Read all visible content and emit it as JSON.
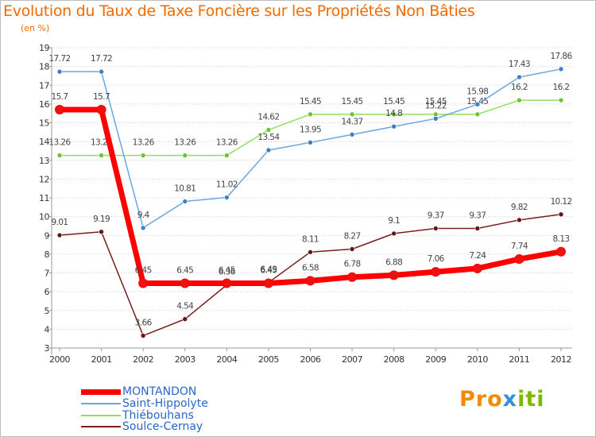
{
  "title": "Evolution du Taux de Taxe Foncière sur les Propriétés Non Bâties",
  "subtitle": "(en %)",
  "logo": {
    "p1": "Pro",
    "p2": "x",
    "p3": "iti"
  },
  "colors": {
    "title": "#f06a00",
    "legend_text": "#2a66c8",
    "grid": "#d0d0d0",
    "axis": "#999999",
    "tick_text": "#333333",
    "value_text": "#444444"
  },
  "chart_data": {
    "type": "line",
    "title": "Evolution du Taux de Taxe Foncière sur les Propriétés Non Bâties",
    "ylabel": "(en %)",
    "xlabel": "",
    "ylim": [
      3,
      19
    ],
    "yticks": [
      3,
      4,
      5,
      6,
      7,
      8,
      9,
      10,
      11,
      12,
      13,
      14,
      15,
      16,
      17,
      18,
      19
    ],
    "categories": [
      "2000",
      "2001",
      "2002",
      "2003",
      "2004",
      "2005",
      "2006",
      "2007",
      "2008",
      "2009",
      "2010",
      "2011",
      "2012"
    ],
    "grid": "horizontal",
    "legend": "bottom-left",
    "series": [
      {
        "name": "Soulce-Cernay",
        "color": "#7a1e1e",
        "marker": "#6a1414",
        "width": 1.5,
        "values": [
          9.01,
          9.19,
          3.66,
          4.54,
          6.36,
          6.49,
          8.11,
          8.27,
          9.1,
          9.37,
          9.37,
          9.82,
          10.12
        ],
        "labels": [
          "9.01",
          "9.19",
          "3.66",
          "4.54",
          "6.36",
          "6.49",
          "8.11",
          "8.27",
          "9.1",
          "9.37",
          "9.37",
          "9.82",
          "10.12"
        ]
      },
      {
        "name": "Thiébouhans",
        "color": "#8fe05a",
        "marker": "#6cc433",
        "width": 1.5,
        "values": [
          13.26,
          13.26,
          13.26,
          13.26,
          13.26,
          14.62,
          15.45,
          15.45,
          15.45,
          15.45,
          15.45,
          16.2,
          16.2
        ],
        "labels": [
          "13.26",
          "13.26",
          "13.26",
          "13.26",
          "13.26",
          "14.62",
          "15.45",
          "15.45",
          "15.45",
          "15.45",
          "15.45",
          "16.2",
          "16.2"
        ]
      },
      {
        "name": "Saint-Hippolyte",
        "color": "#6aa6e0",
        "marker": "#3f7fc4",
        "width": 1.5,
        "values": [
          17.72,
          17.72,
          9.4,
          10.81,
          11.02,
          13.54,
          13.95,
          14.37,
          14.8,
          15.22,
          15.98,
          17.43,
          17.86
        ],
        "labels": [
          "17.72",
          "17.72",
          "9.4",
          "10.81",
          "11.02",
          "13.54",
          "13.95",
          "14.37",
          "14.8",
          "15.22",
          "15.98",
          "17.43",
          "17.86"
        ]
      },
      {
        "name": "MONTANDON",
        "color": "#ff0000",
        "marker": "#ee1111",
        "width": 7,
        "values": [
          15.7,
          15.7,
          6.45,
          6.45,
          6.45,
          6.45,
          6.58,
          6.78,
          6.88,
          7.06,
          7.24,
          7.74,
          8.13
        ],
        "labels": [
          "15.7",
          "15.7",
          "6.45",
          "6.45",
          "6.45",
          "6.45",
          "6.58",
          "6.78",
          "6.88",
          "7.06",
          "7.24",
          "7.74",
          "8.13"
        ]
      }
    ],
    "legend_order": [
      "MONTANDON",
      "Saint-Hippolyte",
      "Thiébouhans",
      "Soulce-Cernay"
    ]
  }
}
